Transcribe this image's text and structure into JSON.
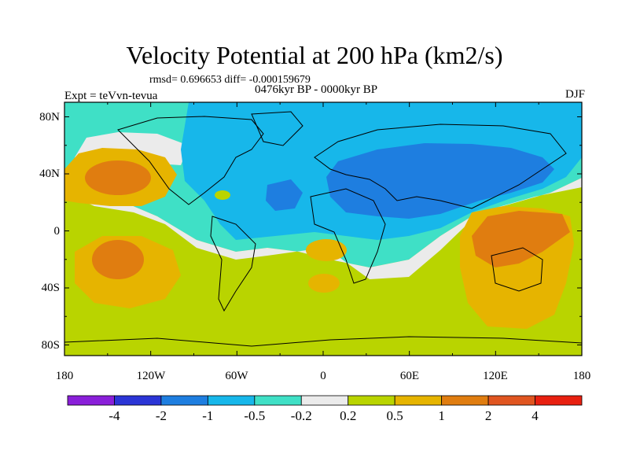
{
  "title": "Velocity Potential at 200 hPa (km2/s)",
  "stats_line": "rmsd= 0.696653 diff= -0.000159679",
  "subtitle": "0476kyr BP - 0000kyr BP",
  "experiment_label": "Expt = teVvn-tevua",
  "season": "DJF",
  "map": {
    "lat_ticks": [
      "80N",
      "40N",
      "0",
      "40S",
      "80S"
    ],
    "lon_ticks": [
      "180",
      "120W",
      "60W",
      "0",
      "60E",
      "120E",
      "180"
    ]
  },
  "colorbar": {
    "labels": [
      "-4",
      "-2",
      "-1",
      "-0.5",
      "-0.2",
      "0.2",
      "0.5",
      "1",
      "2",
      "4"
    ],
    "colors": [
      "#8a1fd9",
      "#2b35d6",
      "#1e7ee0",
      "#17b7ea",
      "#3fe0c6",
      "#ebebeb",
      "#b9d400",
      "#e6b400",
      "#e07d10",
      "#e05520",
      "#e82010"
    ]
  }
}
